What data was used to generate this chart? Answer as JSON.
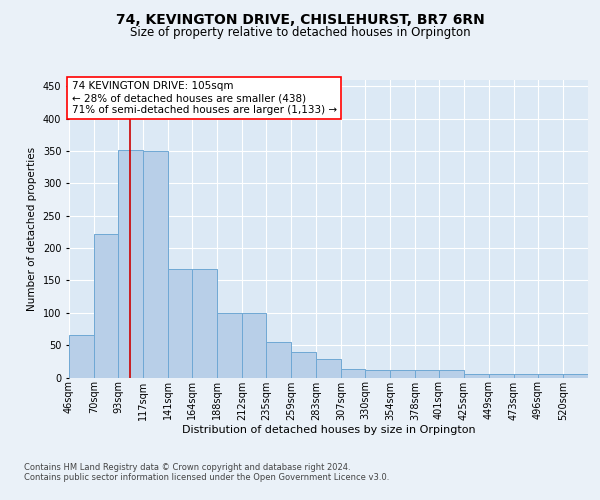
{
  "title": "74, KEVINGTON DRIVE, CHISLEHURST, BR7 6RN",
  "subtitle": "Size of property relative to detached houses in Orpington",
  "xlabel": "Distribution of detached houses by size in Orpington",
  "ylabel": "Number of detached properties",
  "annotation_text": "74 KEVINGTON DRIVE: 105sqm\n← 28% of detached houses are smaller (438)\n71% of semi-detached houses are larger (1,133) →",
  "property_size": 105,
  "bar_labels": [
    "46sqm",
    "70sqm",
    "93sqm",
    "117sqm",
    "141sqm",
    "164sqm",
    "188sqm",
    "212sqm",
    "235sqm",
    "259sqm",
    "283sqm",
    "307sqm",
    "330sqm",
    "354sqm",
    "378sqm",
    "401sqm",
    "425sqm",
    "449sqm",
    "473sqm",
    "496sqm",
    "520sqm"
  ],
  "bar_values": [
    65,
    222,
    352,
    350,
    168,
    168,
    100,
    100,
    55,
    40,
    28,
    13,
    12,
    12,
    12,
    12,
    5,
    5,
    5,
    5,
    5
  ],
  "bar_edges": [
    46,
    70,
    93,
    117,
    141,
    164,
    188,
    212,
    235,
    259,
    283,
    307,
    330,
    354,
    378,
    401,
    425,
    449,
    473,
    496,
    520,
    544
  ],
  "bar_color": "#b8cfe8",
  "bar_edge_color": "#6fa8d4",
  "marker_color": "#cc0000",
  "background_color": "#eaf1f8",
  "plot_bg_color": "#dce9f5",
  "ylim": [
    0,
    460
  ],
  "yticks": [
    0,
    50,
    100,
    150,
    200,
    250,
    300,
    350,
    400,
    450
  ],
  "footer": "Contains HM Land Registry data © Crown copyright and database right 2024.\nContains public sector information licensed under the Open Government Licence v3.0.",
  "box_color": "red",
  "title_fontsize": 10,
  "subtitle_fontsize": 8.5,
  "ylabel_fontsize": 7.5,
  "xlabel_fontsize": 8,
  "tick_fontsize": 7,
  "annot_fontsize": 7.5,
  "footer_fontsize": 6
}
